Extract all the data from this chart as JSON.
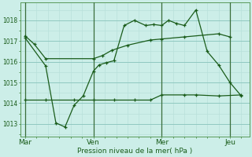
{
  "background_color": "#cceee8",
  "grid_color_minor": "#b8e0da",
  "grid_color_major": "#90c8c0",
  "line_color": "#1a5c1a",
  "vline_color": "#3a6e3a",
  "title": "Pression niveau de la mer( hPa )",
  "ylim": [
    1012.4,
    1018.85
  ],
  "yticks": [
    1013,
    1014,
    1015,
    1016,
    1017,
    1018
  ],
  "xtick_labels": [
    "Mar",
    "Ven",
    "Mer",
    "Jeu"
  ],
  "xtick_positions": [
    0,
    3,
    6,
    9
  ],
  "xmin": -0.2,
  "xmax": 9.85,
  "series1_x": [
    0.0,
    0.4,
    0.9,
    3.0,
    3.4,
    3.8,
    4.5,
    5.5,
    6.0,
    7.0,
    8.5,
    9.0
  ],
  "series1_y": [
    1017.25,
    1016.85,
    1016.15,
    1016.15,
    1016.3,
    1016.55,
    1016.8,
    1017.05,
    1017.1,
    1017.2,
    1017.35,
    1017.2
  ],
  "series2_x": [
    0.0,
    0.9,
    1.35,
    1.75,
    2.15,
    2.55,
    3.0,
    3.25,
    3.55,
    3.9,
    4.35,
    4.8,
    5.3,
    5.65,
    6.0,
    6.3,
    6.65,
    7.0,
    7.5,
    8.0,
    8.5,
    9.0,
    9.5
  ],
  "series2_y": [
    1017.15,
    1015.8,
    1013.05,
    1012.85,
    1013.9,
    1014.35,
    1015.55,
    1015.85,
    1015.95,
    1016.05,
    1017.75,
    1018.0,
    1017.75,
    1017.8,
    1017.75,
    1018.0,
    1017.85,
    1017.75,
    1018.5,
    1016.5,
    1015.85,
    1015.0,
    1014.35
  ],
  "series3_x": [
    0.0,
    0.9,
    2.15,
    3.0,
    3.9,
    4.8,
    5.5,
    6.0,
    7.0,
    7.5,
    8.5,
    9.5
  ],
  "series3_y": [
    1014.15,
    1014.15,
    1014.15,
    1014.15,
    1014.15,
    1014.15,
    1014.15,
    1014.4,
    1014.4,
    1014.4,
    1014.35,
    1014.4
  ],
  "vlines": [
    0,
    3,
    6,
    9
  ]
}
